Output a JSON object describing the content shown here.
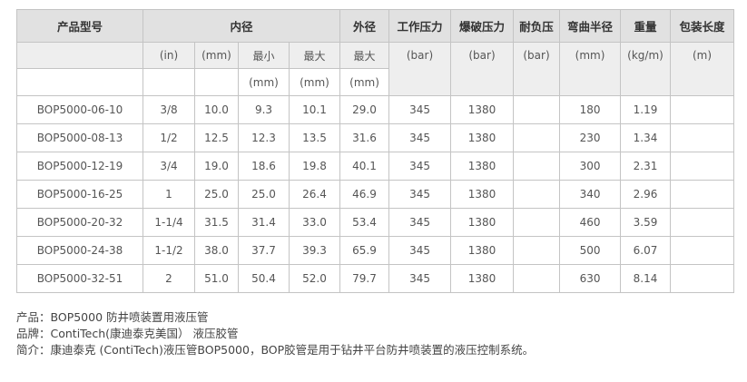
{
  "header": {
    "model": "产品型号",
    "inner_diameter": "内径",
    "outer_diameter": "外径",
    "working_pressure": "工作压力",
    "burst_pressure": "爆破压力",
    "vacuum": "耐负压",
    "bend_radius": "弯曲半径",
    "weight": "重量",
    "package_length": "包装长度"
  },
  "subheader": {
    "in": "(in)",
    "mm": "(mm)",
    "min": "最小",
    "max": "最大",
    "od_max": "最大",
    "bar1": "(bar)",
    "bar2": "(bar)",
    "bar3": "(bar)",
    "bend_mm": "(mm)",
    "kgm": "(kg/m)",
    "m": "(m)",
    "min_mm": "(mm)",
    "max_mm": "(mm)",
    "od_mm": "(mm)"
  },
  "rows": [
    {
      "model": "BOP5000-06-10",
      "in": "3/8",
      "mm": "10.0",
      "min": "9.3",
      "max": "10.1",
      "od": "29.0",
      "wp": "345",
      "bp": "1380",
      "vac": "",
      "bend": "180",
      "weight": "1.19",
      "len": ""
    },
    {
      "model": "BOP5000-08-13",
      "in": "1/2",
      "mm": "12.5",
      "min": "12.3",
      "max": "13.5",
      "od": "31.6",
      "wp": "345",
      "bp": "1380",
      "vac": "",
      "bend": "230",
      "weight": "1.34",
      "len": ""
    },
    {
      "model": "BOP5000-12-19",
      "in": "3/4",
      "mm": "19.0",
      "min": "18.6",
      "max": "19.8",
      "od": "40.1",
      "wp": "345",
      "bp": "1380",
      "vac": "",
      "bend": "300",
      "weight": "2.31",
      "len": ""
    },
    {
      "model": "BOP5000-16-25",
      "in": "1",
      "mm": "25.0",
      "min": "25.0",
      "max": "26.4",
      "od": "46.9",
      "wp": "345",
      "bp": "1380",
      "vac": "",
      "bend": "340",
      "weight": "2.96",
      "len": ""
    },
    {
      "model": "BOP5000-20-32",
      "in": "1-1/4",
      "mm": "31.5",
      "min": "31.4",
      "max": "33.0",
      "od": "53.4",
      "wp": "345",
      "bp": "1380",
      "vac": "",
      "bend": "460",
      "weight": "3.59",
      "len": ""
    },
    {
      "model": "BOP5000-24-38",
      "in": "1-1/2",
      "mm": "38.0",
      "min": "37.7",
      "max": "39.3",
      "od": "65.9",
      "wp": "345",
      "bp": "1380",
      "vac": "",
      "bend": "500",
      "weight": "6.07",
      "len": ""
    },
    {
      "model": "BOP5000-32-51",
      "in": "2",
      "mm": "51.0",
      "min": "50.4",
      "max": "52.0",
      "od": "79.7",
      "wp": "345",
      "bp": "1380",
      "vac": "",
      "bend": "630",
      "weight": "8.14",
      "len": ""
    }
  ],
  "notes": {
    "product": "产品：BOP5000 防井喷装置用液压管",
    "brand": "品牌：ContiTech(康迪泰克美国） 液压胶管",
    "intro": "简介：康迪泰克 (ContiTech)液压管BOP5000，BOP胶管是用于钻井平台防井喷装置的液压控制系统。"
  }
}
